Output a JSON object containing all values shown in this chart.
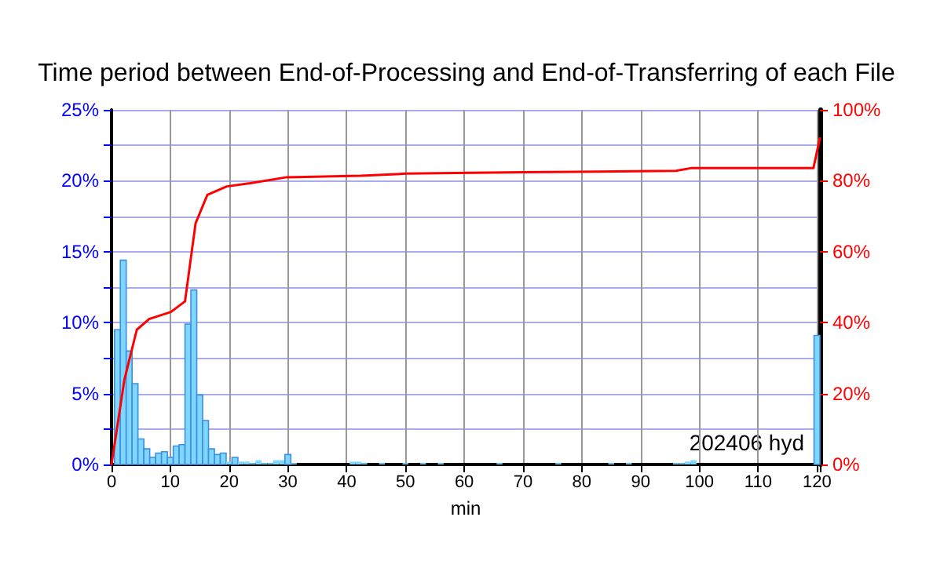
{
  "chart_data": {
    "type": "histogram",
    "title": "Time period between End-of-Processing and End-of-Transferring of each File",
    "xlabel": "min",
    "annotations": [
      "202406 hyd"
    ],
    "bins": [
      0.5,
      1.5,
      2.5,
      3.5,
      4.5,
      5.5,
      6.5,
      7.5,
      8.5,
      9.5,
      10.5,
      11.5,
      12.5,
      13.5,
      14.5,
      15.5,
      16.5,
      17.5,
      18.5,
      19.5,
      20.5,
      21.5,
      22.5,
      23.5,
      24.5,
      25.5,
      26.5,
      27.5,
      28.5,
      29.5,
      30.5,
      31.5,
      32.5,
      33.5,
      34.5,
      35.5,
      36.5,
      37.5,
      38.5,
      39.5,
      40.5,
      41.5,
      42.5,
      43.5,
      44.5,
      45.5,
      46.5,
      47.5,
      48.5,
      49.5,
      50.5,
      51.5,
      52.5,
      53.5,
      54.5,
      55.5,
      56.5,
      57.5,
      58.5,
      59.5,
      60.5,
      61.5,
      62.5,
      63.5,
      64.5,
      65.5,
      66.5,
      67.5,
      68.5,
      69.5,
      70.5,
      71.5,
      72.5,
      73.5,
      74.5,
      75.5,
      76.5,
      77.5,
      78.5,
      79.5,
      80.5,
      81.5,
      82.5,
      83.5,
      84.5,
      85.5,
      86.5,
      87.5,
      88.5,
      89.5,
      90.5,
      91.5,
      92.5,
      93.5,
      94.5,
      95.5,
      96.5,
      97.5,
      98.5,
      99.5,
      100.5,
      101.5,
      102.5,
      103.5,
      104.5,
      105.5,
      106.5,
      107.5,
      108.5,
      109.5,
      110.5,
      111.5,
      112.5,
      113.5,
      114.5,
      115.5,
      116.5,
      117.5,
      118.5,
      119.5,
      120.5
    ],
    "series": [
      {
        "color": "#7fd6ff",
        "values": [
          9.5,
          14.4,
          8.0,
          5.7,
          1.8,
          1.1,
          0.5,
          0.8,
          0.9,
          0.5,
          1.3,
          1.4,
          9.9,
          12.3,
          4.9,
          3.1,
          1.1,
          0.7,
          0.8,
          0.2,
          0.5,
          0.2,
          0.2,
          0.1,
          0.3,
          0.1,
          0.1,
          0.3,
          0.3,
          0.7,
          0.1,
          0,
          0,
          0,
          0,
          0,
          0,
          0,
          0,
          0,
          0.2,
          0.2,
          0.1,
          0,
          0,
          0.1,
          0,
          0,
          0,
          0.1,
          0,
          0,
          0.1,
          0,
          0,
          0.1,
          0,
          0,
          0,
          0,
          0,
          0,
          0,
          0,
          0,
          0.1,
          0,
          0,
          0,
          0,
          0,
          0,
          0,
          0,
          0,
          0.1,
          0,
          0,
          0,
          0,
          0,
          0,
          0,
          0,
          0.1,
          0,
          0,
          0.1,
          0,
          0,
          0,
          0,
          0,
          0,
          0,
          0.1,
          0.1,
          0.2,
          0.3,
          0,
          0,
          0,
          0,
          0,
          0,
          0,
          0,
          0,
          0,
          0,
          0,
          0,
          0,
          0,
          0,
          0,
          0,
          0,
          0,
          9.1
        ]
      },
      {
        "type": "line",
        "axis": "y2",
        "color": "#ff0000",
        "x": [
          0,
          2.2,
          4.3,
          6.4,
          10.1,
          12.5,
          14.3,
          16.3,
          19.6,
          23.6,
          29.8,
          42.4,
          50,
          70,
          96,
          98.7,
          119.4,
          120.5
        ],
        "values": [
          0,
          24,
          38,
          41,
          43,
          46,
          68,
          76,
          78.4,
          79.3,
          81,
          81.4,
          82,
          82.4,
          82.8,
          83.6,
          83.6,
          92.0
        ]
      }
    ],
    "xlim": [
      0,
      120.5
    ],
    "xticks": [
      0,
      10,
      20,
      30,
      40,
      50,
      60,
      70,
      80,
      90,
      100,
      110,
      120
    ],
    "ylim": [
      0,
      25
    ],
    "yticks": [
      {
        "value": 0,
        "label": "0%"
      },
      {
        "value": 2.5,
        "label": null
      },
      {
        "value": 5,
        "label": "5%"
      },
      {
        "value": 7.5,
        "label": null
      },
      {
        "value": 10,
        "label": "10%"
      },
      {
        "value": 12.5,
        "label": null
      },
      {
        "value": 15,
        "label": "15%"
      },
      {
        "value": 17.5,
        "label": null
      },
      {
        "value": 20,
        "label": "20%"
      },
      {
        "value": 22.5,
        "label": null
      },
      {
        "value": 25,
        "label": "25%"
      }
    ],
    "y2lim": [
      0,
      100
    ],
    "y2ticks": [
      {
        "value": 0,
        "label": "0%"
      },
      {
        "value": 20,
        "label": "20%"
      },
      {
        "value": 40,
        "label": "40%"
      },
      {
        "value": 60,
        "label": "60%"
      },
      {
        "value": 80,
        "label": "80%"
      },
      {
        "value": 100,
        "label": "100%"
      }
    ],
    "grid": true,
    "marker": "none",
    "line_style": "solid"
  }
}
